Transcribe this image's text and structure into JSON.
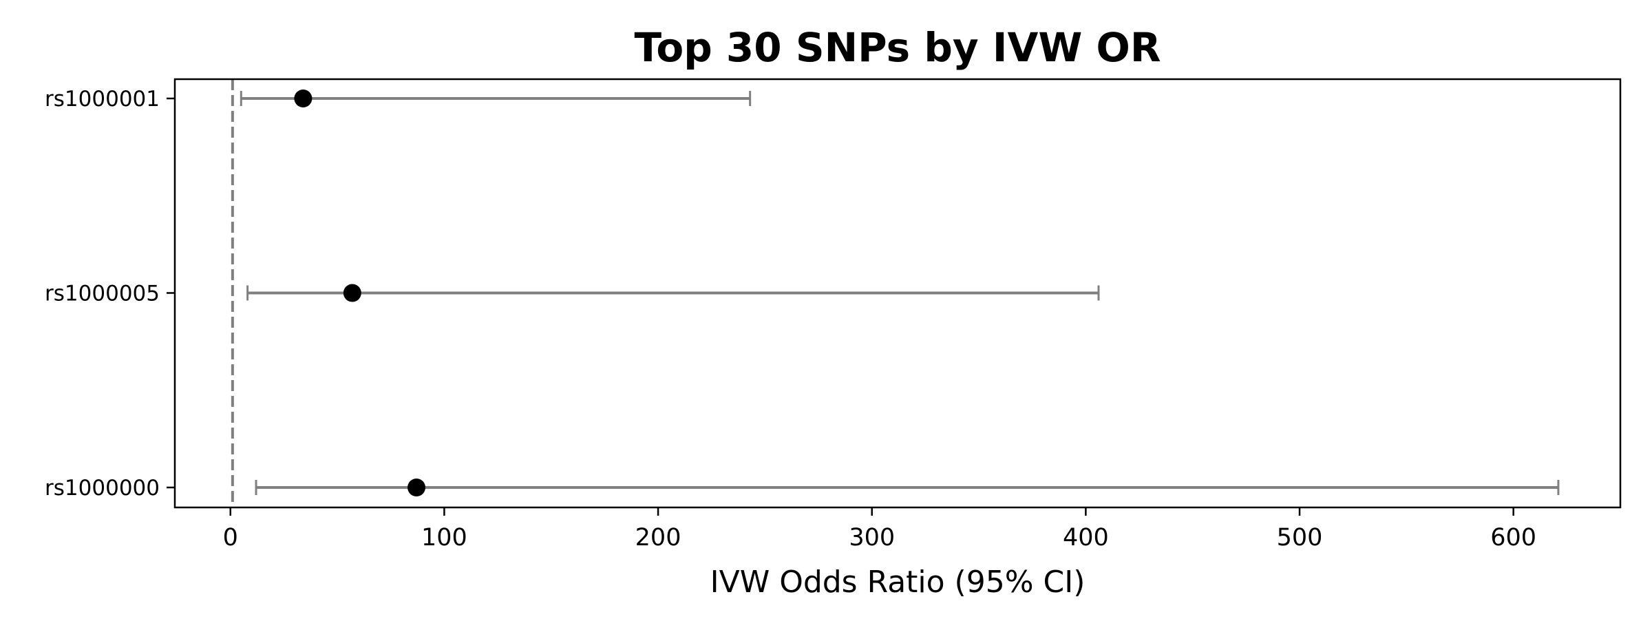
{
  "chart_data": {
    "type": "forest",
    "title": "Top 30 SNPs by IVW OR",
    "xlabel": "IVW Odds Ratio (95% CI)",
    "ylabel": "",
    "xlim": [
      -26,
      650
    ],
    "xticks": [
      0,
      100,
      200,
      300,
      400,
      500,
      600
    ],
    "xtick_labels": [
      "0",
      "100",
      "200",
      "300",
      "400",
      "500",
      "600"
    ],
    "reference_line": 1,
    "grid": false,
    "colors": {
      "point": "#000000",
      "ci": "#808080",
      "reference": "#808080"
    },
    "rows": [
      {
        "label": "rs1000001",
        "or": 34,
        "ci_low": 5,
        "ci_high": 243
      },
      {
        "label": "rs1000005",
        "or": 57,
        "ci_low": 8,
        "ci_high": 406
      },
      {
        "label": "rs1000000",
        "or": 87,
        "ci_low": 12,
        "ci_high": 621
      }
    ]
  }
}
